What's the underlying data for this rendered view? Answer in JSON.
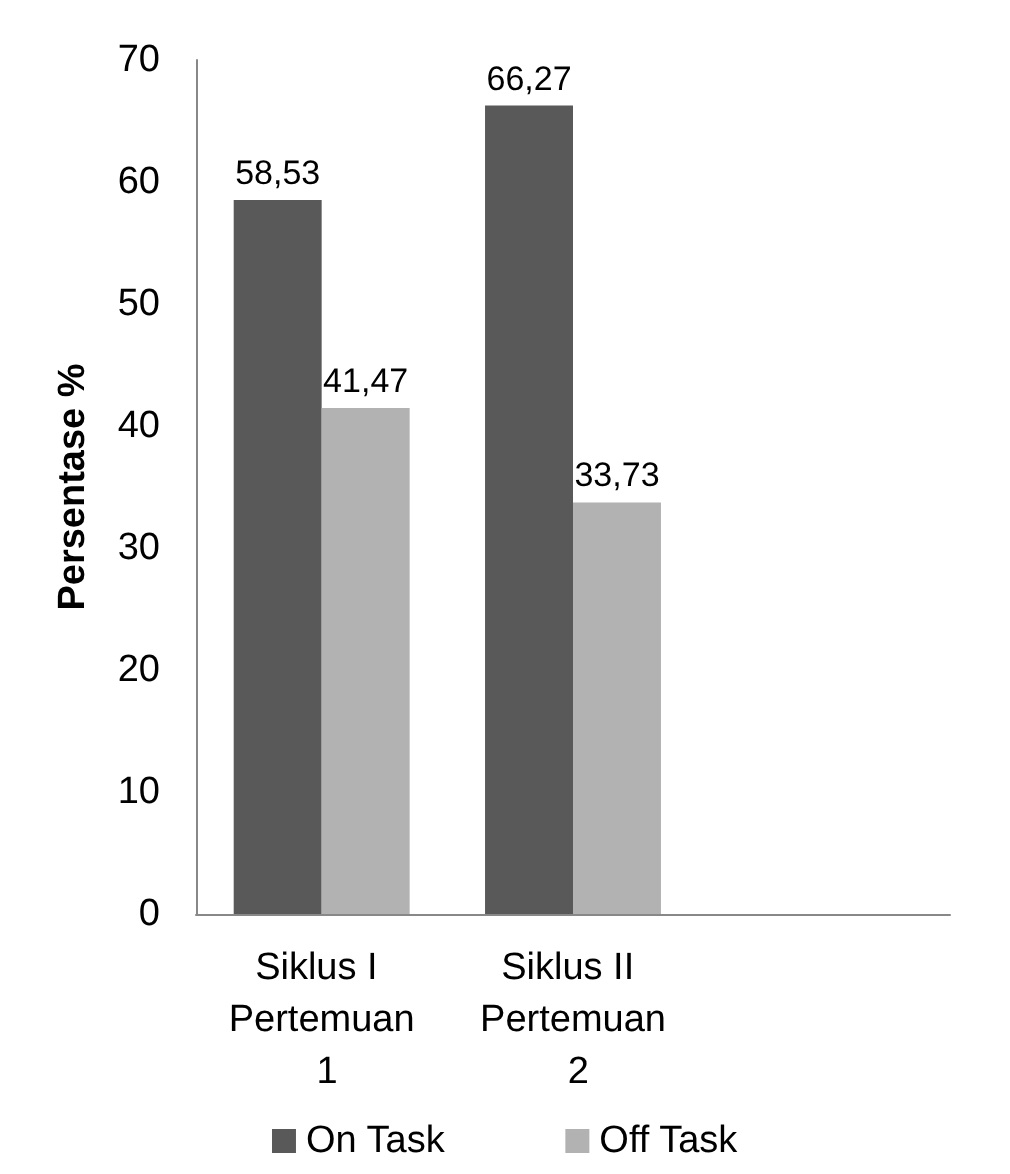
{
  "chart_data": {
    "type": "bar",
    "ylabel": "Persentase %",
    "categories": [
      "Siklus I Pertemuan 1",
      "Siklus II Pertemuan 2",
      null
    ],
    "series": [
      {
        "name": "On Task",
        "color": "#595959",
        "values": [
          58.53,
          66.27,
          null
        ],
        "value_labels": [
          "58,53",
          "66,27",
          null
        ]
      },
      {
        "name": "Off Task",
        "color": "#b2b2b2",
        "values": [
          41.47,
          33.73,
          null
        ],
        "value_labels": [
          "41,47",
          "33,73",
          null
        ]
      }
    ],
    "ylim": [
      0,
      70
    ],
    "yticks": [
      0,
      10,
      20,
      30,
      40,
      50,
      60,
      70
    ],
    "grid": false,
    "legend": "bottom"
  }
}
